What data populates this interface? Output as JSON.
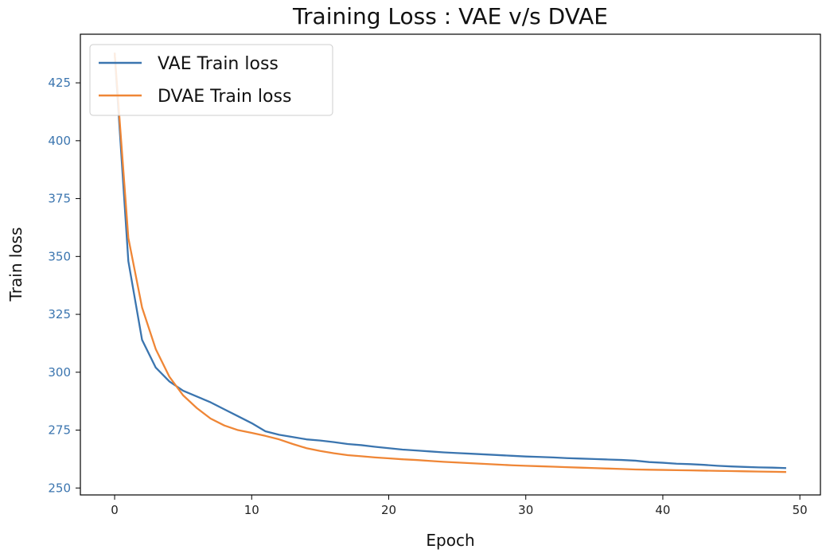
{
  "chart_data": {
    "type": "line",
    "title": "Training Loss : VAE v/s DVAE",
    "xlabel": "Epoch",
    "ylabel": "Train loss",
    "xlim": [
      -2.5,
      51.5
    ],
    "ylim": [
      247,
      446
    ],
    "xticks": [
      0,
      10,
      20,
      30,
      40,
      50
    ],
    "xtick_labels": [
      "0",
      "10",
      "20",
      "30",
      "40",
      "50"
    ],
    "yticks": [
      250,
      275,
      300,
      325,
      350,
      375,
      400,
      425
    ],
    "ytick_labels": [
      "250",
      "275",
      "300",
      "325",
      "350",
      "375",
      "400",
      "425"
    ],
    "ytick_color": "#3b75af",
    "grid": false,
    "legend_position": "top-left",
    "x": [
      0,
      1,
      2,
      3,
      4,
      5,
      6,
      7,
      8,
      9,
      10,
      11,
      12,
      13,
      14,
      15,
      16,
      17,
      18,
      19,
      20,
      21,
      22,
      23,
      24,
      25,
      26,
      27,
      28,
      29,
      30,
      31,
      32,
      33,
      34,
      35,
      36,
      37,
      38,
      39,
      40,
      41,
      42,
      43,
      44,
      45,
      46,
      47,
      48,
      49
    ],
    "series": [
      {
        "name": "VAE Train loss",
        "color": "#3b75af",
        "values": [
          438,
          348,
          314,
          302,
          296,
          292,
          289.5,
          287,
          284,
          281,
          278,
          274.5,
          273,
          272,
          271,
          270.5,
          269.8,
          269,
          268.5,
          267.8,
          267.2,
          266.6,
          266.2,
          265.8,
          265.4,
          265.1,
          264.8,
          264.5,
          264.2,
          263.9,
          263.6,
          263.4,
          263.2,
          262.9,
          262.7,
          262.5,
          262.3,
          262.1,
          261.8,
          261.2,
          260.9,
          260.5,
          260.3,
          260,
          259.6,
          259.3,
          259.1,
          258.9,
          258.8,
          258.6
        ]
      },
      {
        "name": "DVAE Train loss",
        "color": "#ef8636",
        "values": [
          438,
          358,
          328,
          310,
          298,
          290,
          284.5,
          280,
          277,
          275,
          273.8,
          272.5,
          271,
          269,
          267.2,
          266,
          265,
          264.2,
          263.7,
          263.2,
          262.8,
          262.4,
          262.1,
          261.7,
          261.3,
          261,
          260.7,
          260.4,
          260.1,
          259.8,
          259.6,
          259.4,
          259.2,
          259.0,
          258.8,
          258.6,
          258.4,
          258.2,
          258.0,
          257.9,
          257.8,
          257.7,
          257.6,
          257.5,
          257.4,
          257.3,
          257.2,
          257.1,
          257.0,
          256.9
        ]
      }
    ]
  }
}
